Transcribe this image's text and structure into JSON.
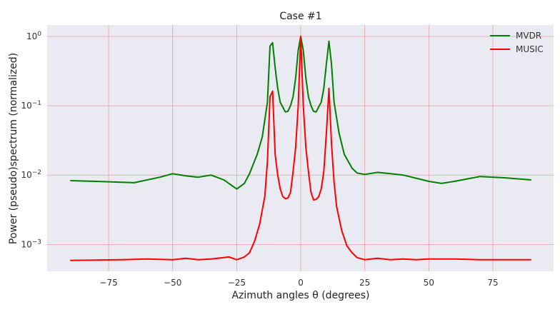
{
  "chart_data": {
    "type": "line",
    "title": "Case #1",
    "xlabel": "Azimuth angles θ (degrees)",
    "ylabel": "Power (pseudo)spectrum (normalized)",
    "yscale": "log",
    "xlim": [
      -99,
      98.7
    ],
    "ylim": [
      0.00041,
      1.46
    ],
    "xticks": [
      -75,
      -50,
      -25,
      0,
      25,
      50,
      75
    ],
    "xtick_labels": [
      "−75",
      "−50",
      "−25",
      "0",
      "25",
      "50",
      "75"
    ],
    "yticks": [
      1,
      0.1,
      0.01,
      0.001
    ],
    "ytick_exponents": [
      "0",
      "−1",
      "−2",
      "−3"
    ],
    "ytick_base": "10",
    "grid": true,
    "legend": "top-right",
    "series": [
      {
        "name": "MVDR",
        "color": "#008000",
        "x": [
          -90,
          -80,
          -65,
          -55,
          -50,
          -45,
          -40,
          -35,
          -30,
          -25,
          -22,
          -20,
          -17,
          -15,
          -13,
          -12,
          -11,
          -10,
          -9,
          -8,
          -7,
          -6,
          -5,
          -4,
          -3,
          -2,
          -1,
          0,
          1,
          2,
          3,
          4,
          5,
          6,
          7,
          8,
          9,
          10,
          11,
          12,
          13,
          15,
          17,
          20,
          22,
          25,
          30,
          35,
          40,
          50,
          55,
          60,
          70,
          80,
          90
        ],
        "logy": [
          -2.08,
          -2.09,
          -2.11,
          -2.03,
          -1.98,
          -2.01,
          -2.03,
          -2.0,
          -2.07,
          -2.2,
          -2.12,
          -1.98,
          -1.7,
          -1.45,
          -0.95,
          -0.14,
          -0.09,
          -0.45,
          -0.75,
          -0.95,
          -1.02,
          -1.09,
          -1.08,
          -1.0,
          -0.87,
          -0.6,
          -0.2,
          0,
          -0.2,
          -0.6,
          -0.87,
          -1.0,
          -1.08,
          -1.09,
          -1.02,
          -0.95,
          -0.75,
          -0.4,
          -0.07,
          -0.4,
          -0.95,
          -1.4,
          -1.7,
          -1.9,
          -1.97,
          -1.99,
          -1.96,
          -1.98,
          -2.0,
          -2.09,
          -2.12,
          -2.09,
          -2.02,
          -2.04,
          -2.07
        ]
      },
      {
        "name": "MUSIC",
        "color": "#ff0000",
        "x": [
          -90,
          -70,
          -60,
          -50,
          -45,
          -40,
          -35,
          -30,
          -28,
          -25,
          -22,
          -20,
          -18,
          -16,
          -14,
          -13,
          -12,
          -11,
          -10,
          -9,
          -8,
          -7,
          -6,
          -5,
          -4,
          -3,
          -2,
          -1,
          0,
          1,
          2,
          3,
          4,
          5,
          6,
          7,
          8,
          9,
          10,
          11,
          12,
          13,
          14,
          16,
          18,
          20,
          22,
          25,
          30,
          35,
          40,
          45,
          50,
          60,
          70,
          80,
          90
        ],
        "logy": [
          -3.23,
          -3.22,
          -3.21,
          -3.22,
          -3.2,
          -3.22,
          -3.21,
          -3.19,
          -3.18,
          -3.22,
          -3.18,
          -3.12,
          -2.95,
          -2.7,
          -2.3,
          -1.8,
          -0.87,
          -0.79,
          -1.7,
          -2.0,
          -2.2,
          -2.31,
          -2.34,
          -2.33,
          -2.25,
          -1.95,
          -1.6,
          -1.0,
          0,
          -1.0,
          -1.6,
          -1.95,
          -2.25,
          -2.36,
          -2.35,
          -2.31,
          -2.2,
          -1.95,
          -1.4,
          -0.75,
          -1.55,
          -2.1,
          -2.45,
          -2.8,
          -3.02,
          -3.12,
          -3.19,
          -3.22,
          -3.2,
          -3.22,
          -3.21,
          -3.22,
          -3.21,
          -3.21,
          -3.22,
          -3.22,
          -3.22
        ]
      }
    ]
  }
}
